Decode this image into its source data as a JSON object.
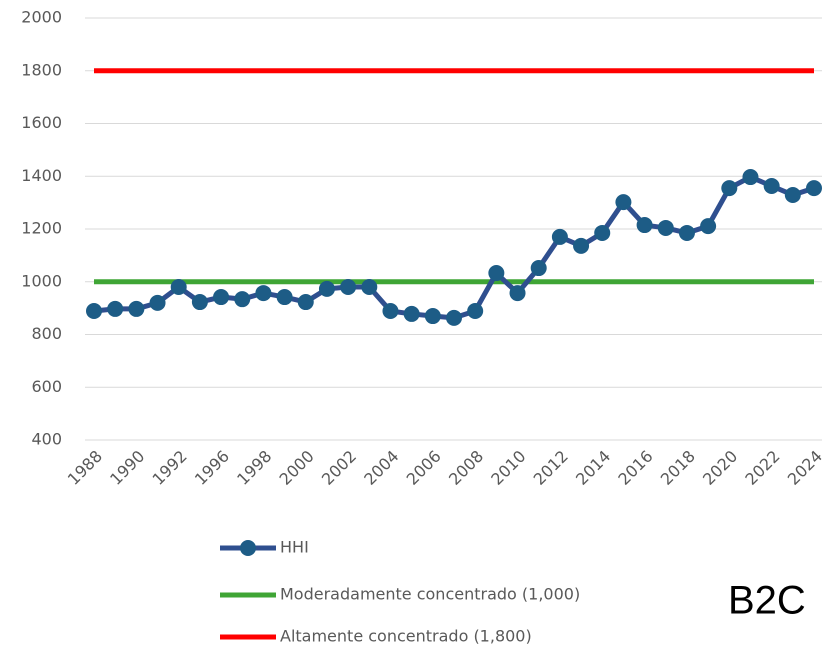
{
  "chart_data": {
    "type": "line",
    "categories": [
      "1988",
      null,
      "1990",
      null,
      "1992",
      null,
      "1996",
      null,
      "1998",
      null,
      "2000",
      null,
      "2002",
      null,
      "2004",
      null,
      "2006",
      null,
      "2008",
      null,
      "2010",
      null,
      "2012",
      null,
      "2014",
      null,
      "2016",
      null,
      "2018",
      null,
      "2020",
      null,
      "2022",
      null,
      "2024"
    ],
    "series": [
      {
        "name": "HHI",
        "color": "#2f4f8f",
        "marker_color": "#1d5c86",
        "marker": true,
        "values": [
          889,
          897,
          897,
          920,
          980,
          923,
          942,
          934,
          957,
          942,
          923,
          973,
          980,
          980,
          889,
          878,
          870,
          863,
          889,
          1033,
          957,
          1052,
          1170,
          1136,
          1185,
          1302,
          1215,
          1204,
          1185,
          1211,
          1355,
          1397,
          1363,
          1329,
          1355
        ]
      },
      {
        "name": "Moderadamente concentrado (1,000)",
        "color": "#3fa535",
        "marker": false,
        "values": [
          1000,
          1000,
          1000,
          1000,
          1000,
          1000,
          1000,
          1000,
          1000,
          1000,
          1000,
          1000,
          1000,
          1000,
          1000,
          1000,
          1000,
          1000,
          1000,
          1000,
          1000,
          1000,
          1000,
          1000,
          1000,
          1000,
          1000,
          1000,
          1000,
          1000,
          1000,
          1000,
          1000,
          1000,
          1000
        ]
      },
      {
        "name": "Altamente concentrado (1,800)",
        "color": "#ff0000",
        "marker": false,
        "values": [
          1800,
          1800,
          1800,
          1800,
          1800,
          1800,
          1800,
          1800,
          1800,
          1800,
          1800,
          1800,
          1800,
          1800,
          1800,
          1800,
          1800,
          1800,
          1800,
          1800,
          1800,
          1800,
          1800,
          1800,
          1800,
          1800,
          1800,
          1800,
          1800,
          1800,
          1800,
          1800,
          1800,
          1800,
          1800
        ]
      }
    ],
    "ylim": [
      400,
      2000
    ],
    "yticks": [
      400,
      600,
      800,
      1000,
      1200,
      1400,
      1600,
      1800,
      2000
    ],
    "grid": true,
    "legend": "bottom",
    "annotation": "B2C"
  }
}
